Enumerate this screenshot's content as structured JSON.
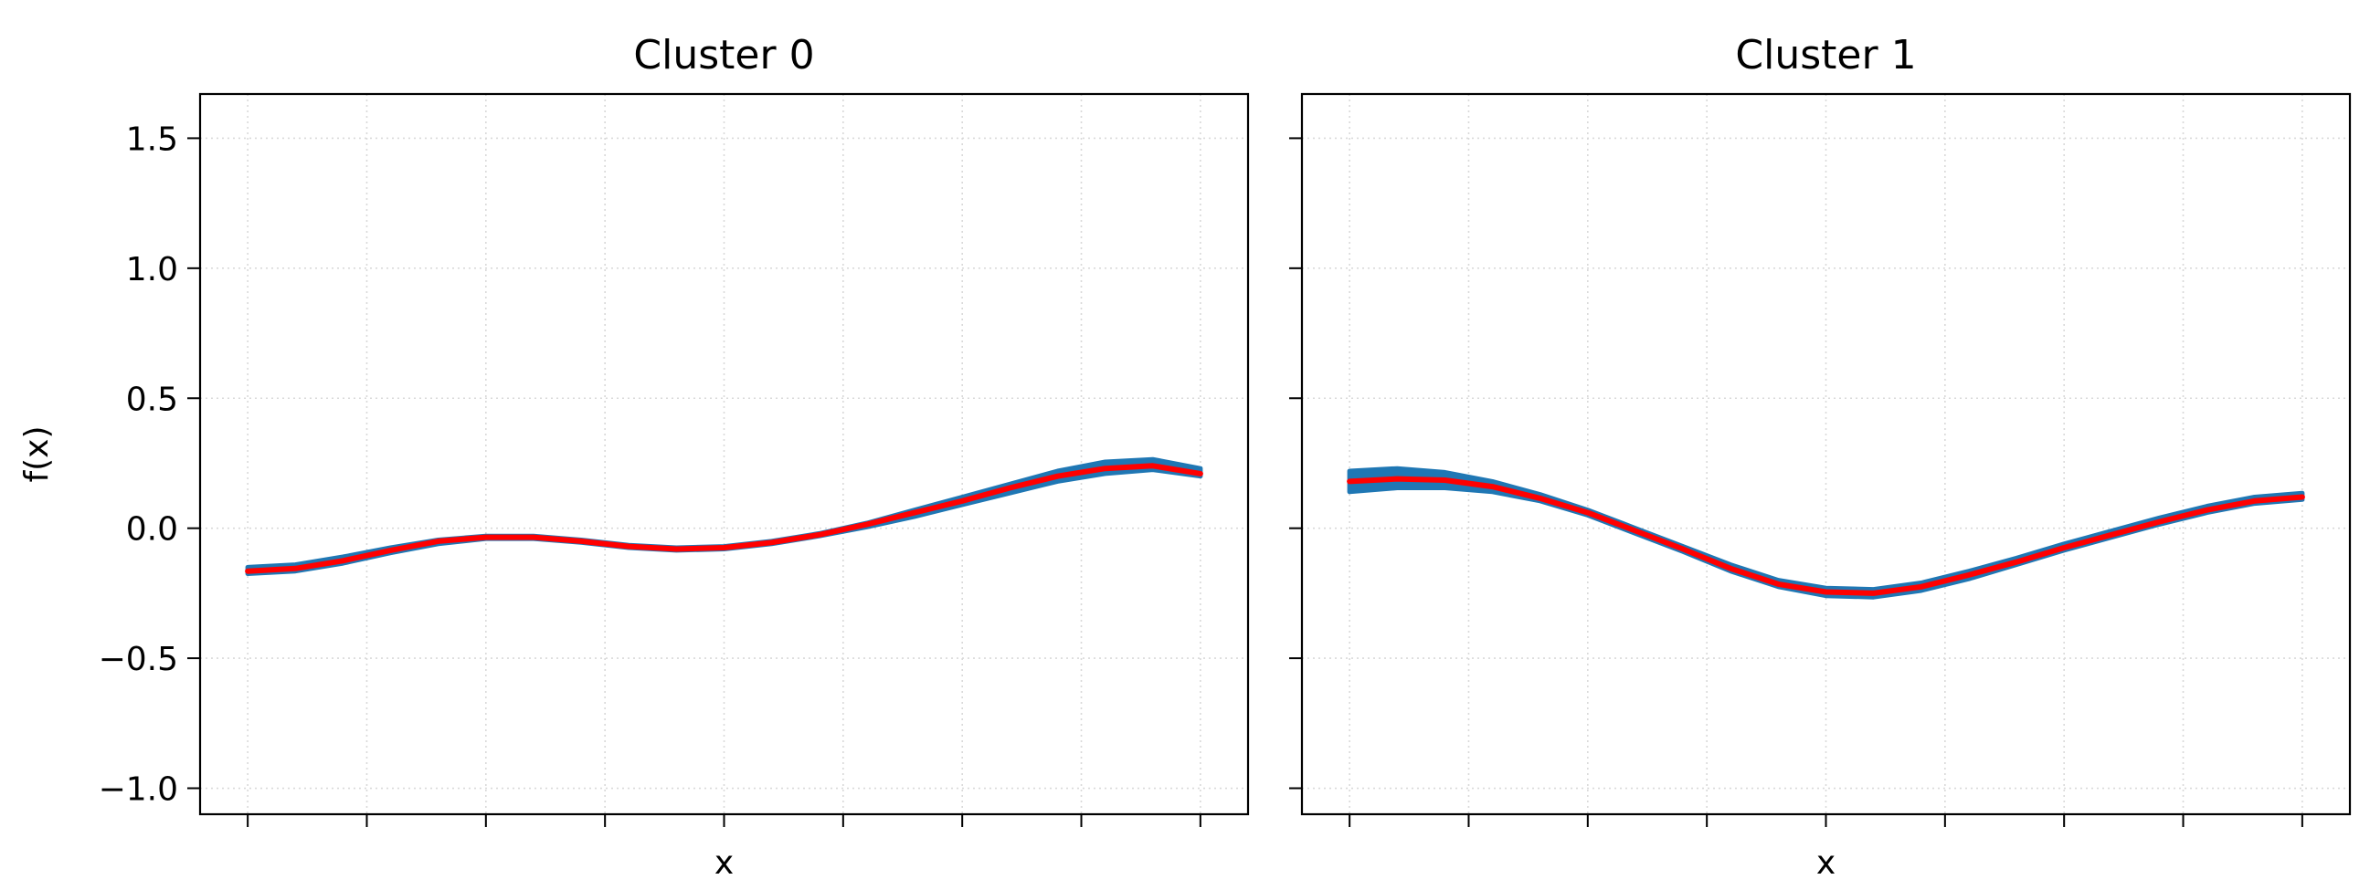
{
  "chart_data": [
    {
      "type": "line",
      "title": "Cluster 0",
      "xlabel": "x",
      "ylabel": "f(x)",
      "xlim": [
        -0.05,
        1.05
      ],
      "ylim": [
        -1.1,
        1.67
      ],
      "yticks": [
        1.5,
        1.0,
        0.5,
        0.0,
        -0.5,
        -1.0
      ],
      "ytick_labels": [
        "1.5",
        "1.0",
        "0.5",
        "0.0",
        "−0.5",
        "−1.0"
      ],
      "xticks": [
        0.0,
        0.125,
        0.25,
        0.375,
        0.5,
        0.625,
        0.75,
        0.875,
        1.0
      ],
      "grid": true,
      "colors": {
        "band": "#1f77b4",
        "mean": "#ff0000"
      },
      "x": [
        0.0,
        0.05,
        0.1,
        0.15,
        0.2,
        0.25,
        0.3,
        0.35,
        0.4,
        0.45,
        0.5,
        0.55,
        0.6,
        0.65,
        0.7,
        0.75,
        0.8,
        0.85,
        0.9,
        0.95,
        1.0
      ],
      "series": [
        {
          "role": "band_upper",
          "values": [
            -0.15,
            -0.14,
            -0.11,
            -0.075,
            -0.045,
            -0.03,
            -0.03,
            -0.045,
            -0.065,
            -0.075,
            -0.07,
            -0.05,
            -0.02,
            0.02,
            0.07,
            0.12,
            0.17,
            0.22,
            0.255,
            0.265,
            0.23
          ]
        },
        {
          "role": "band_lower",
          "values": [
            -0.175,
            -0.165,
            -0.135,
            -0.095,
            -0.06,
            -0.04,
            -0.04,
            -0.055,
            -0.075,
            -0.085,
            -0.08,
            -0.06,
            -0.03,
            0.005,
            0.045,
            0.09,
            0.135,
            0.18,
            0.21,
            0.225,
            0.2
          ]
        },
        {
          "role": "mean",
          "values": [
            -0.165,
            -0.155,
            -0.125,
            -0.085,
            -0.05,
            -0.035,
            -0.035,
            -0.05,
            -0.07,
            -0.08,
            -0.075,
            -0.055,
            -0.025,
            0.015,
            0.06,
            0.105,
            0.155,
            0.2,
            0.23,
            0.24,
            0.21
          ]
        }
      ]
    },
    {
      "type": "line",
      "title": "Cluster 1",
      "xlabel": "x",
      "ylabel": "",
      "xlim": [
        -0.05,
        1.05
      ],
      "ylim": [
        -1.1,
        1.67
      ],
      "yticks": [
        1.5,
        1.0,
        0.5,
        0.0,
        -0.5,
        -1.0
      ],
      "ytick_labels": [
        "",
        "",
        "",
        "",
        "",
        ""
      ],
      "xticks": [
        0.0,
        0.125,
        0.25,
        0.375,
        0.5,
        0.625,
        0.75,
        0.875,
        1.0
      ],
      "grid": true,
      "colors": {
        "band": "#1f77b4",
        "mean": "#ff0000"
      },
      "x": [
        0.0,
        0.05,
        0.1,
        0.15,
        0.2,
        0.25,
        0.3,
        0.35,
        0.4,
        0.45,
        0.5,
        0.55,
        0.6,
        0.65,
        0.7,
        0.75,
        0.8,
        0.85,
        0.9,
        0.95,
        1.0
      ],
      "series": [
        {
          "role": "band_upper",
          "values": [
            0.22,
            0.23,
            0.215,
            0.18,
            0.13,
            0.07,
            0.0,
            -0.07,
            -0.14,
            -0.2,
            -0.23,
            -0.235,
            -0.21,
            -0.165,
            -0.115,
            -0.06,
            -0.01,
            0.04,
            0.085,
            0.12,
            0.135
          ]
        },
        {
          "role": "band_lower",
          "values": [
            0.14,
            0.155,
            0.155,
            0.14,
            0.105,
            0.05,
            -0.02,
            -0.09,
            -0.165,
            -0.225,
            -0.26,
            -0.265,
            -0.24,
            -0.195,
            -0.14,
            -0.085,
            -0.035,
            0.015,
            0.06,
            0.095,
            0.11
          ]
        },
        {
          "role": "mean",
          "values": [
            0.18,
            0.19,
            0.185,
            0.16,
            0.115,
            0.06,
            -0.01,
            -0.08,
            -0.155,
            -0.215,
            -0.245,
            -0.25,
            -0.225,
            -0.18,
            -0.13,
            -0.075,
            -0.025,
            0.025,
            0.07,
            0.105,
            0.12
          ]
        }
      ]
    }
  ]
}
